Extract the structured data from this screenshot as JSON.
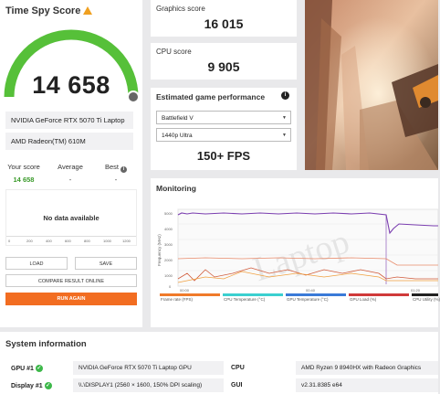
{
  "score_card": {
    "title": "Time Spy Score",
    "score": "14 658",
    "gpu": "NVIDIA GeForce RTX 5070 Ti Laptop GPU",
    "cpu": "AMD Radeon(TM) 610M",
    "your_score_label": "Your score",
    "average_label": "Average",
    "best_label": "Best",
    "your_score_value": "14 658",
    "average_value": "-",
    "best_value": "-",
    "no_data": "No data available",
    "axis_ticks": [
      "0",
      "200",
      "400",
      "600",
      "800",
      "1000",
      "1200"
    ],
    "load_label": "LOAD",
    "save_label": "SAVE",
    "compare_label": "COMPARE RESULT ONLINE",
    "run_again_label": "RUN AGAIN"
  },
  "graphics": {
    "label": "Graphics score",
    "value": "16 015"
  },
  "cpu_score": {
    "label": "CPU score",
    "value": "9 905"
  },
  "estimate": {
    "title": "Estimated game performance",
    "game": "Battlefield V",
    "preset": "1440p Ultra",
    "fps": "150+ FPS"
  },
  "monitoring": {
    "title": "Monitoring",
    "watermark": "Laptop",
    "y_label": "Frequency (MHz)",
    "y_ticks": [
      "5000",
      "4000",
      "3000",
      "2000",
      "1000",
      "0"
    ],
    "x_ticks": [
      "00:00",
      "00:40",
      "01:20"
    ],
    "legend": [
      {
        "label": "Frame rate (FPS)",
        "color": "#f07a2a"
      },
      {
        "label": "CPU Temperature (°C)",
        "color": "#3bd0d0"
      },
      {
        "label": "GPU Temperature (°C)",
        "color": "#3a7ad8"
      },
      {
        "label": "GPU Load (%)",
        "color": "#d03a3a"
      },
      {
        "label": "CPU Utility (%)",
        "color": "#222"
      }
    ]
  },
  "system_info": {
    "title": "System information",
    "gpu_label": "GPU #1",
    "gpu_value": "NVIDIA GeForce RTX 5070 Ti Laptop GPU",
    "display_label": "Display #1",
    "display_value": "\\\\.\\DISPLAY1 (2560 × 1600, 150% DPI scaling)",
    "cpu_label": "CPU",
    "cpu_value": "AMD Ryzen 9 8940HX with Radeon Graphics",
    "gui_label": "GUI",
    "gui_value": "v2.31.8385 e64"
  }
}
